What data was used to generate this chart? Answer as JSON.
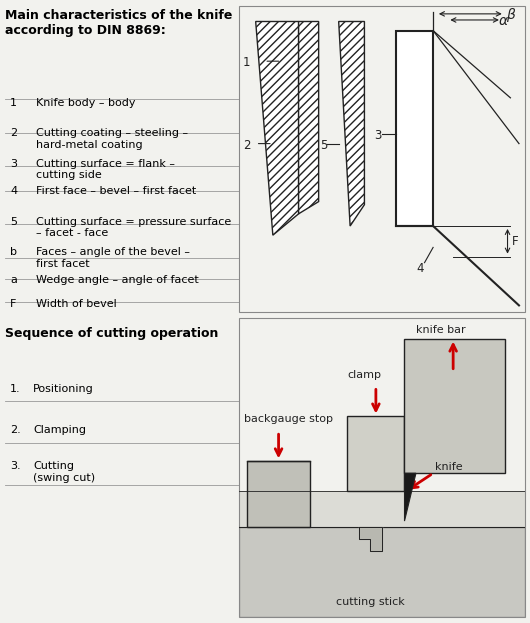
{
  "bg_color": "#f2f2ee",
  "box_bg": "#ffffff",
  "title1": "Main characteristics of the knife\naccording to DIN 8869:",
  "legend_items": [
    [
      "1",
      "Knife body – body"
    ],
    [
      "2",
      "Cutting coating – steeling –\nhard-metal coating"
    ],
    [
      "3",
      "Cutting surface = flank –\ncutting side"
    ],
    [
      "4",
      "First face – bevel – first facet"
    ],
    [
      "5",
      "Cutting surface = pressure surface\n– facet - face"
    ],
    [
      "b",
      "Faces – angle of the bevel –\nfirst facet"
    ],
    [
      "a",
      "Wedge angle – angle of facet"
    ],
    [
      "F",
      "Width of bevel"
    ]
  ],
  "title2": "Sequence of cutting operation",
  "seq_items": [
    [
      "1.",
      "Positioning"
    ],
    [
      "2.",
      "Clamping"
    ],
    [
      "3.",
      "Cutting\n(swing cut)"
    ]
  ],
  "line_color": "#222222",
  "red_arrow": "#cc0000",
  "label_fontsize": 8.0,
  "title_fontsize": 9.0,
  "diagram_bg": "#f0f0ec",
  "cut_bg": "#e0e0da"
}
